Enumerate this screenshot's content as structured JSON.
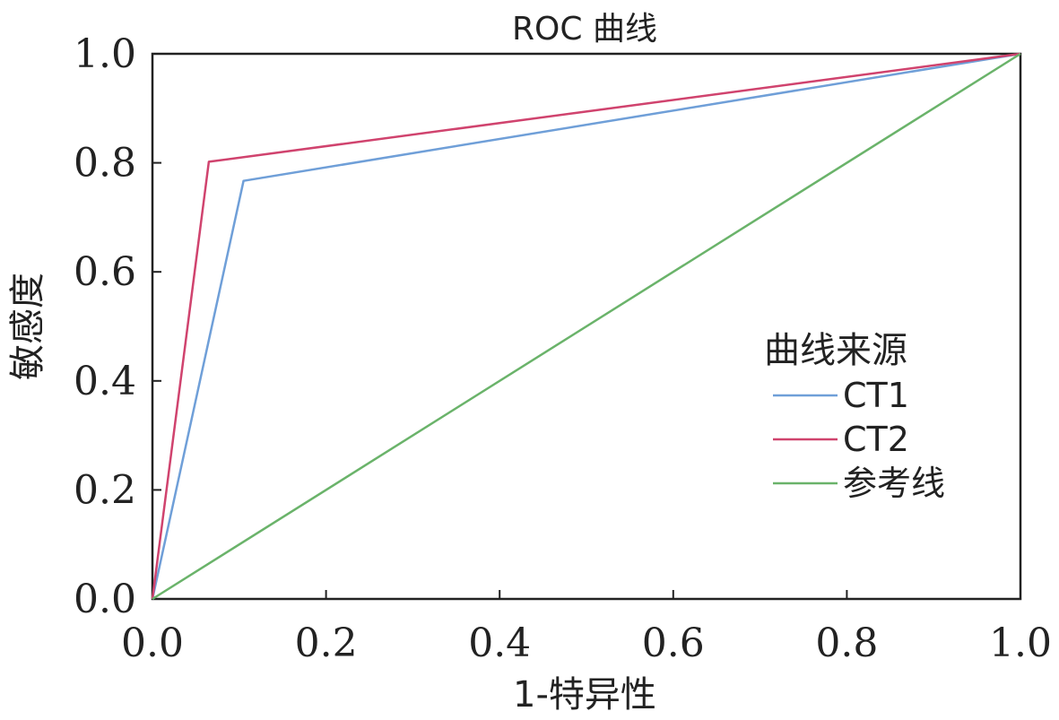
{
  "chart_data": {
    "type": "line",
    "title": "ROC 曲线",
    "xlabel": "1-特异性",
    "ylabel": "敏感度",
    "xlim": [
      0,
      1
    ],
    "ylim": [
      0,
      1
    ],
    "xticks": [
      "0.0",
      "0.2",
      "0.4",
      "0.6",
      "0.8",
      "1.0"
    ],
    "yticks": [
      "0.0",
      "0.2",
      "0.4",
      "0.6",
      "0.8",
      "1.0"
    ],
    "grid": false,
    "legend": {
      "title": "曲线来源",
      "position": "right"
    },
    "series": [
      {
        "name": "CT1",
        "color": "#6f9fd8",
        "x": [
          0,
          0.105,
          1.0
        ],
        "y": [
          0,
          0.767,
          1.0
        ]
      },
      {
        "name": "CT2",
        "color": "#d0436e",
        "x": [
          0,
          0.065,
          1.0
        ],
        "y": [
          0,
          0.802,
          1.0
        ]
      },
      {
        "name": "参考线",
        "color": "#6ab36a",
        "x": [
          0,
          1.0
        ],
        "y": [
          0,
          1.0
        ]
      }
    ]
  }
}
